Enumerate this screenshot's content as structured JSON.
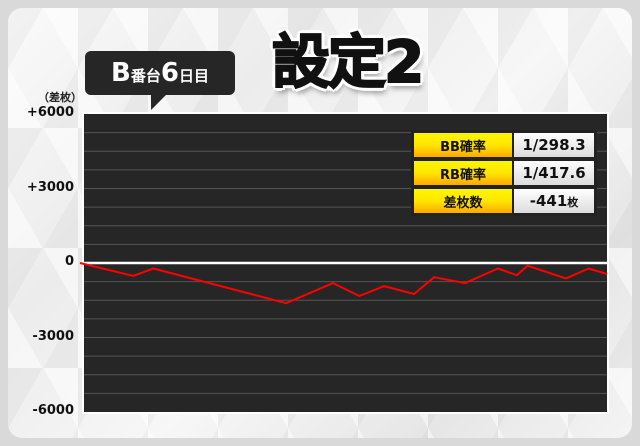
{
  "header": {
    "machine_label": "B",
    "machine_suffix": "番台",
    "day_number": "6",
    "day_suffix": "日目",
    "setting_title": "設定2"
  },
  "stats": [
    {
      "label": "BB確率",
      "value": "1/298.3",
      "unit": ""
    },
    {
      "label": "RB確率",
      "value": "1/417.6",
      "unit": ""
    },
    {
      "label": "差枚数",
      "value": "-441",
      "unit": "枚"
    }
  ],
  "chart_data": {
    "type": "line",
    "ylabel": "（差枚）",
    "ylim": [
      -6000,
      6000
    ],
    "yticks": [
      6000,
      3000,
      0,
      -3000,
      -6000
    ],
    "ytick_labels": [
      "+6000",
      "+3000",
      "0",
      "-3000",
      "-6000"
    ],
    "grid": true,
    "x_unit": "percent of session (unlabeled axis)",
    "x": [
      0,
      10.1,
      13.9,
      39.1,
      48.0,
      53.0,
      57.7,
      63.4,
      67.2,
      73.1,
      79.3,
      82.9,
      84.9,
      92.2,
      96.5,
      100
    ],
    "y": [
      0,
      -520,
      -220,
      -1620,
      -810,
      -1330,
      -930,
      -1250,
      -570,
      -810,
      -220,
      -490,
      -110,
      -620,
      -220,
      -441
    ],
    "line_color": "#ff0000",
    "background_color": "#262626"
  }
}
